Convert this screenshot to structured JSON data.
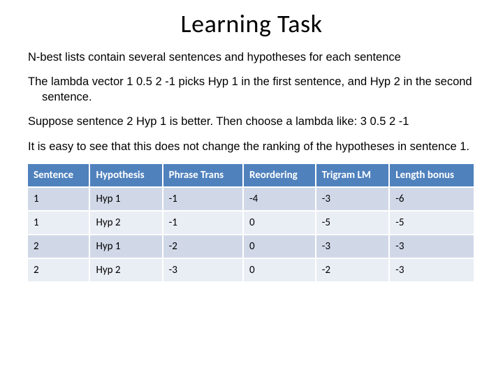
{
  "title": "Learning Task",
  "paragraphs": {
    "p1": "N-best lists contain several sentences and hypotheses for each sentence",
    "p2": "The lambda vector 1 0.5 2 -1 picks Hyp 1 in the first sentence, and Hyp 2 in the second sentence.",
    "p3": "Suppose sentence 2 Hyp 1 is better. Then choose a lambda like: 3 0.5 2 -1",
    "p4": "It is easy to see that this does not change the ranking of the hypotheses in sentence 1."
  },
  "table": {
    "columns": [
      "Sentence",
      "Hypothesis",
      "Phrase Trans",
      "Reordering",
      "Trigram LM",
      "Length bonus"
    ],
    "rows": [
      [
        "1",
        "Hyp 1",
        "-1",
        "-4",
        "-3",
        "-6"
      ],
      [
        "1",
        "Hyp 2",
        "-1",
        " 0",
        "-5",
        "-5"
      ],
      [
        "2",
        "Hyp 1",
        "-2",
        "0",
        "-3",
        "-3"
      ],
      [
        "2",
        "Hyp 2",
        "-3",
        "0",
        "-2",
        "-3"
      ]
    ],
    "header_bg": "#4f81bd",
    "header_fg": "#ffffff",
    "row_odd_bg": "#d0d8e8",
    "row_even_bg": "#e9edf4",
    "col_widths": [
      "15%",
      "16%",
      "15%",
      "18%",
      "18%",
      "18%"
    ]
  }
}
